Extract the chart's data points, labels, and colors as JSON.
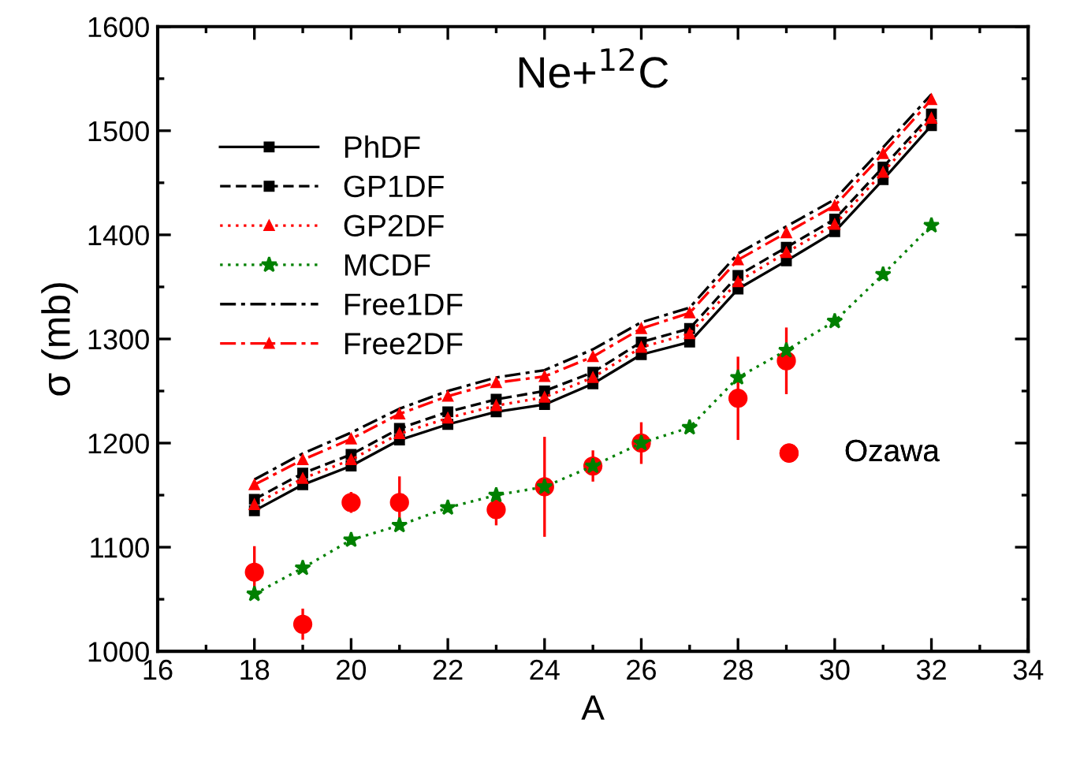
{
  "chart_data": {
    "type": "line",
    "title": "Ne+$^{12}$C",
    "xlabel": "A",
    "ylabel": "σ (mb)",
    "x": [
      18,
      19,
      20,
      21,
      22,
      23,
      24,
      25,
      26,
      27,
      28,
      29,
      30,
      31,
      32
    ],
    "xlim": [
      16,
      34
    ],
    "xticks": [
      16,
      18,
      20,
      22,
      24,
      26,
      28,
      30,
      32,
      34
    ],
    "ylim": [
      1000,
      1600
    ],
    "yticks": [
      1000,
      1100,
      1200,
      1300,
      1400,
      1500,
      1600
    ],
    "grid": false,
    "legend": "top left",
    "series": [
      {
        "name": "PhDF",
        "color": "#000000",
        "line_style": "solid",
        "marker": "square",
        "values": [
          1135,
          1160,
          1178,
          1203,
          1218,
          1230,
          1237,
          1257,
          1285,
          1297,
          1348,
          1375,
          1403,
          1453,
          1505
        ]
      },
      {
        "name": "GP1DF",
        "color": "#000000",
        "line_style": "dashed",
        "marker": "square",
        "values": [
          1146,
          1171,
          1189,
          1214,
          1230,
          1242,
          1250,
          1268,
          1297,
          1310,
          1361,
          1388,
          1415,
          1465,
          1516
        ]
      },
      {
        "name": "GP2DF",
        "color": "#ff0000",
        "line_style": "dotted",
        "marker": "triangle",
        "values": [
          1141,
          1166,
          1184,
          1209,
          1224,
          1236,
          1244,
          1263,
          1292,
          1305,
          1355,
          1383,
          1410,
          1460,
          1512
        ]
      },
      {
        "name": "MCDF",
        "color": "#008000",
        "line_style": "dotted",
        "marker": "star",
        "values": [
          1055,
          1080,
          1107,
          1121,
          1138,
          1150,
          1158,
          1178,
          1200,
          1215,
          1263,
          1289,
          1317,
          1362,
          1409
        ]
      },
      {
        "name": "Free1DF",
        "color": "#000000",
        "line_style": "dashdot",
        "marker": "none",
        "values": [
          1165,
          1190,
          1210,
          1233,
          1250,
          1263,
          1270,
          1290,
          1316,
          1330,
          1382,
          1408,
          1434,
          1484,
          1535
        ]
      },
      {
        "name": "Free2DF",
        "color": "#ff0000",
        "line_style": "dashdot",
        "marker": "triangle",
        "values": [
          1160,
          1184,
          1204,
          1228,
          1245,
          1258,
          1264,
          1283,
          1310,
          1325,
          1376,
          1402,
          1428,
          1478,
          1530
        ]
      },
      {
        "name": "Ozawa",
        "type": "scatter",
        "color": "#ff0000",
        "marker": "circle",
        "x": [
          18,
          19,
          20,
          21,
          23,
          24,
          25,
          26,
          28,
          29
        ],
        "values": [
          1076,
          1026,
          1143,
          1143,
          1136,
          1158,
          1178,
          1200,
          1243,
          1279
        ],
        "errors": [
          25,
          15,
          10,
          25,
          15,
          48,
          15,
          20,
          40,
          32
        ]
      }
    ]
  }
}
